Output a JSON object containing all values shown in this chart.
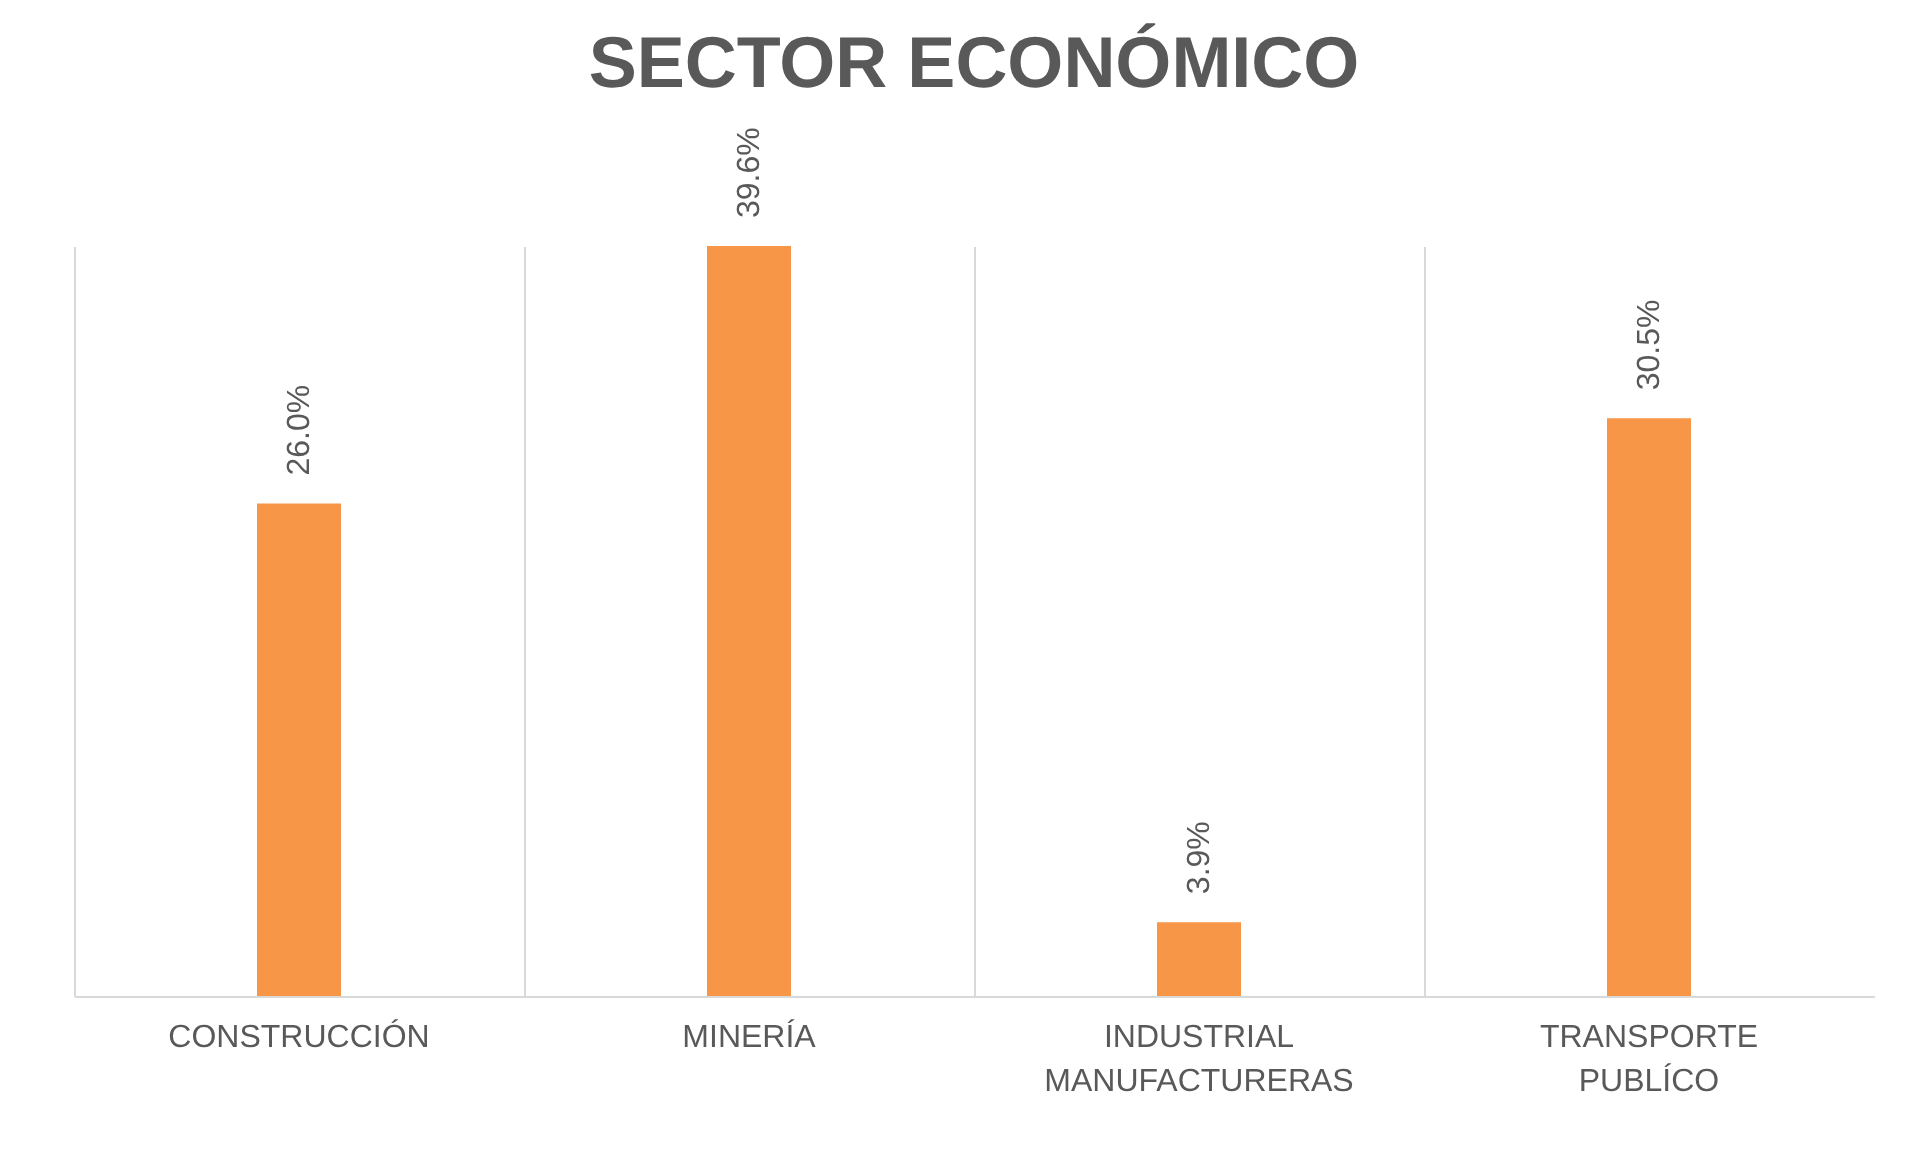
{
  "chart_data": {
    "type": "bar",
    "title": "SECTOR ECONÓMICO",
    "categories": [
      "CONSTRUCCIÓN",
      "MINERÍA",
      "INDUSTRIAL MANUFACTURERAS",
      "TRANSPORTE PUBLÍCO"
    ],
    "values": [
      26.0,
      39.6,
      3.9,
      30.5
    ],
    "value_labels": [
      "26.0%",
      "39.6%",
      "3.9%",
      "30.5%"
    ],
    "color": "#f79646",
    "grid": "x"
  }
}
